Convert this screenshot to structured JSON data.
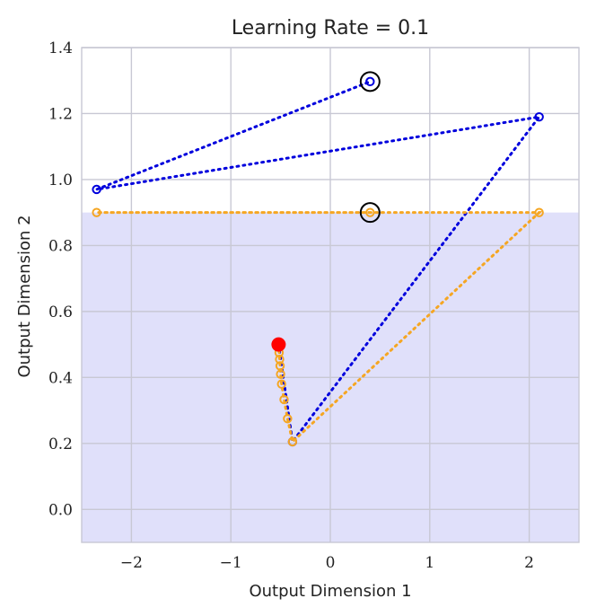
{
  "chart_data": {
    "type": "line",
    "title": "Learning Rate = 0.1",
    "xlabel": "Output Dimension 1",
    "ylabel": "Output Dimension 2",
    "xlim": [
      -2.5,
      2.5
    ],
    "ylim": [
      -0.1,
      1.4
    ],
    "xticks": [
      -2,
      -1,
      0,
      1,
      2
    ],
    "xtick_labels": [
      "−2",
      "−1",
      "0",
      "1",
      "2"
    ],
    "yticks": [
      0.0,
      0.2,
      0.4,
      0.6,
      0.8,
      1.0,
      1.2,
      1.4
    ],
    "ytick_labels": [
      "0.0",
      "0.2",
      "0.4",
      "0.6",
      "0.8",
      "1.0",
      "1.2",
      "1.4"
    ],
    "grid": true,
    "feasible_region": {
      "x": [
        -2.5,
        2.5
      ],
      "y": [
        -0.1,
        0.9
      ],
      "color": "#e0e0fa"
    },
    "start_point": {
      "x": -0.52,
      "y": 0.5,
      "color": "#ff0000"
    },
    "series": [
      {
        "name": "blue-trajectory",
        "color": "#0000dd",
        "points": [
          [
            -0.52,
            0.5
          ],
          [
            -0.38,
            0.205
          ],
          [
            2.1,
            1.19
          ],
          [
            -2.35,
            0.97
          ],
          [
            0.4,
            1.297
          ]
        ],
        "endpoint": [
          0.4,
          1.297
        ]
      },
      {
        "name": "orange-trajectory",
        "color": "#f5a623",
        "points": [
          [
            -0.52,
            0.5
          ],
          [
            -0.515,
            0.475
          ],
          [
            -0.51,
            0.455
          ],
          [
            -0.505,
            0.435
          ],
          [
            -0.5,
            0.41
          ],
          [
            -0.49,
            0.38
          ],
          [
            -0.465,
            0.333
          ],
          [
            -0.43,
            0.275
          ],
          [
            -0.38,
            0.205
          ],
          [
            2.1,
            0.9
          ],
          [
            -2.35,
            0.9
          ],
          [
            0.4,
            0.9
          ]
        ],
        "endpoint": [
          0.4,
          0.9
        ]
      }
    ]
  }
}
